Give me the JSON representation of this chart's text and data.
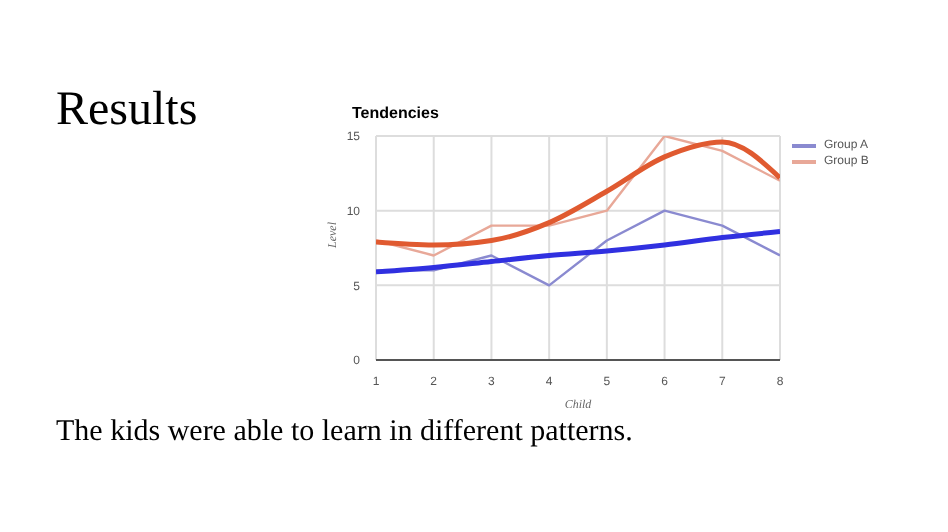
{
  "chart_data": {
    "type": "line",
    "title": "Tendencies",
    "xlabel": "Child",
    "ylabel": "Level",
    "annotations": [
      "Results",
      "The kids were able to learn in different patterns."
    ],
    "x": [
      1,
      2,
      3,
      4,
      5,
      6,
      7,
      8
    ],
    "xlim": [
      1,
      8
    ],
    "xticks": [
      1,
      2,
      3,
      4,
      5,
      6,
      7,
      8
    ],
    "ylim": [
      0,
      15
    ],
    "yticks": [
      0,
      5,
      10,
      15
    ],
    "grid": true,
    "legend": "top right",
    "marker": "none",
    "series": [
      {
        "name": "Group A",
        "color": "#8a8ad0",
        "values": [
          6,
          6,
          7,
          5,
          8,
          10,
          9,
          7
        ]
      },
      {
        "name": "Group B",
        "color": "#e8a898",
        "values": [
          8,
          7,
          9,
          9,
          10,
          15,
          14,
          12
        ]
      },
      {
        "color": "#3030e0",
        "values": [
          5.9,
          6.2,
          6.6,
          7,
          7.3,
          7.7,
          8.2,
          8.6
        ]
      },
      {
        "color": "#e05a30",
        "values": [
          7.9,
          7.7,
          8,
          9.2,
          11.3,
          13.6,
          14.6,
          12.2
        ]
      }
    ]
  }
}
